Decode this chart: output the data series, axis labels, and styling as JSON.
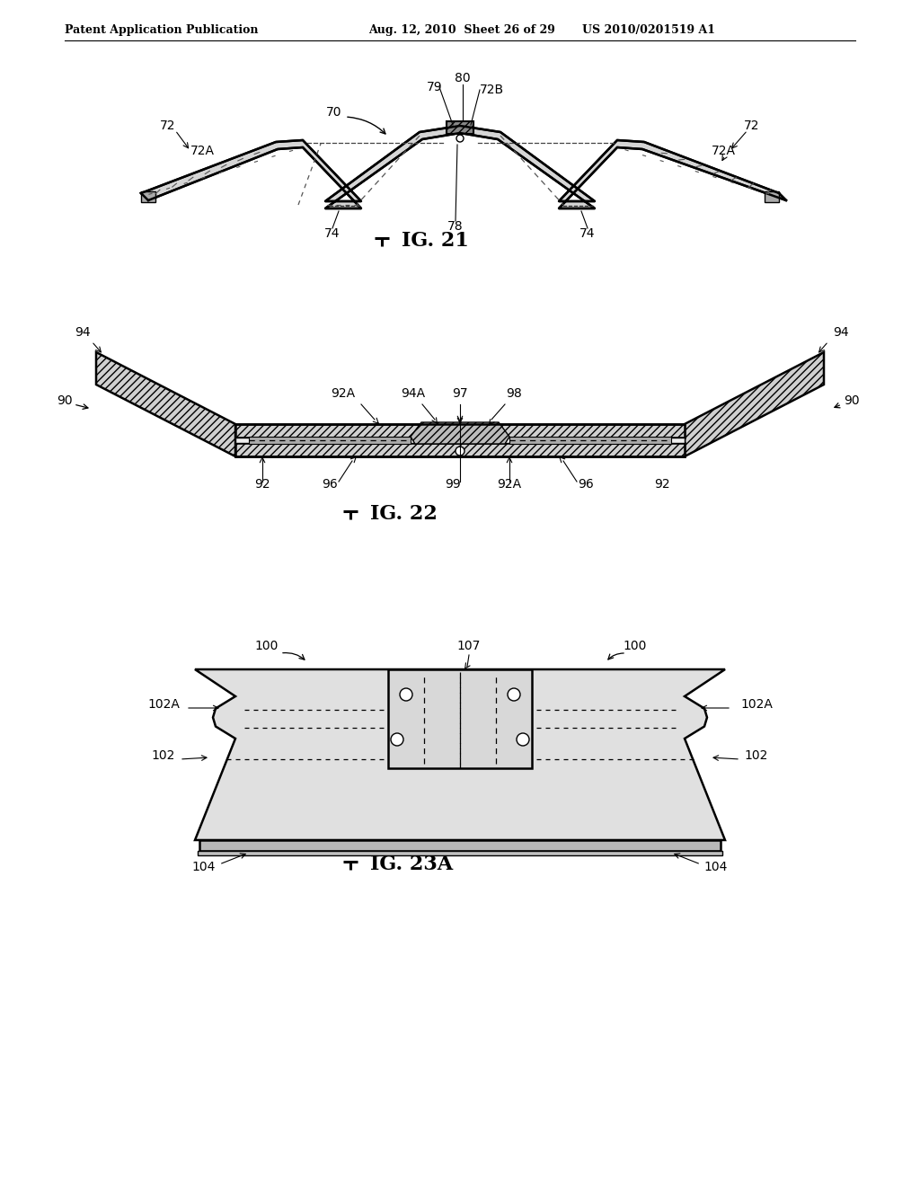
{
  "header_left": "Patent Application Publication",
  "header_mid": "Aug. 12, 2010  Sheet 26 of 29",
  "header_right": "US 2010/0201519 A1",
  "fig21_label": "IG. 21",
  "fig22_label": "IG. 22",
  "fig23a_label": "IG. 23A",
  "bg_color": "#ffffff",
  "lc": "#000000",
  "gray_light": "#e0e0e0",
  "gray_mid": "#c0c0c0",
  "gray_dark": "#909090"
}
